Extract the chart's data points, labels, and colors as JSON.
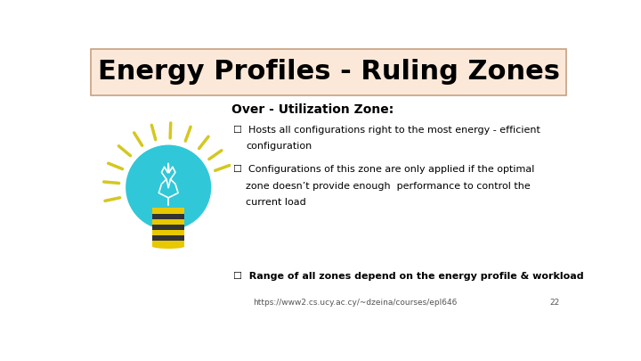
{
  "title": "Energy Profiles - Ruling Zones",
  "title_bg_color": "#fce8d8",
  "title_border_color": "#c8a080",
  "title_fontsize": 22,
  "subtitle": "Over - Utilization Zone:",
  "subtitle_fontsize": 10,
  "bullet1_line1": "☐  Hosts all configurations right to the most energy - efficient",
  "bullet1_line2": "      configuration",
  "bullet2_line1": "☐  Configurations of this zone are only applied if the optimal",
  "bullet2_line2": "      zone doesn’t provide enough  performance to control the",
  "bullet2_line3": "      current load",
  "bullet3": "☐  Range of all zones depend on the energy profile & workload",
  "footer": "https://www2.cs.ucy.ac.cy/~dzeina/courses/epl646",
  "page_num": "22",
  "bg_color": "#ffffff",
  "text_color": "#000000",
  "bullet_fontsize": 8,
  "footer_fontsize": 6.5,
  "ray_color": "#d4c820",
  "bulb_color": "#30c8d8",
  "base_color": "#e8c800",
  "stripe_color": "#333333",
  "filament_color": "#ffffff"
}
